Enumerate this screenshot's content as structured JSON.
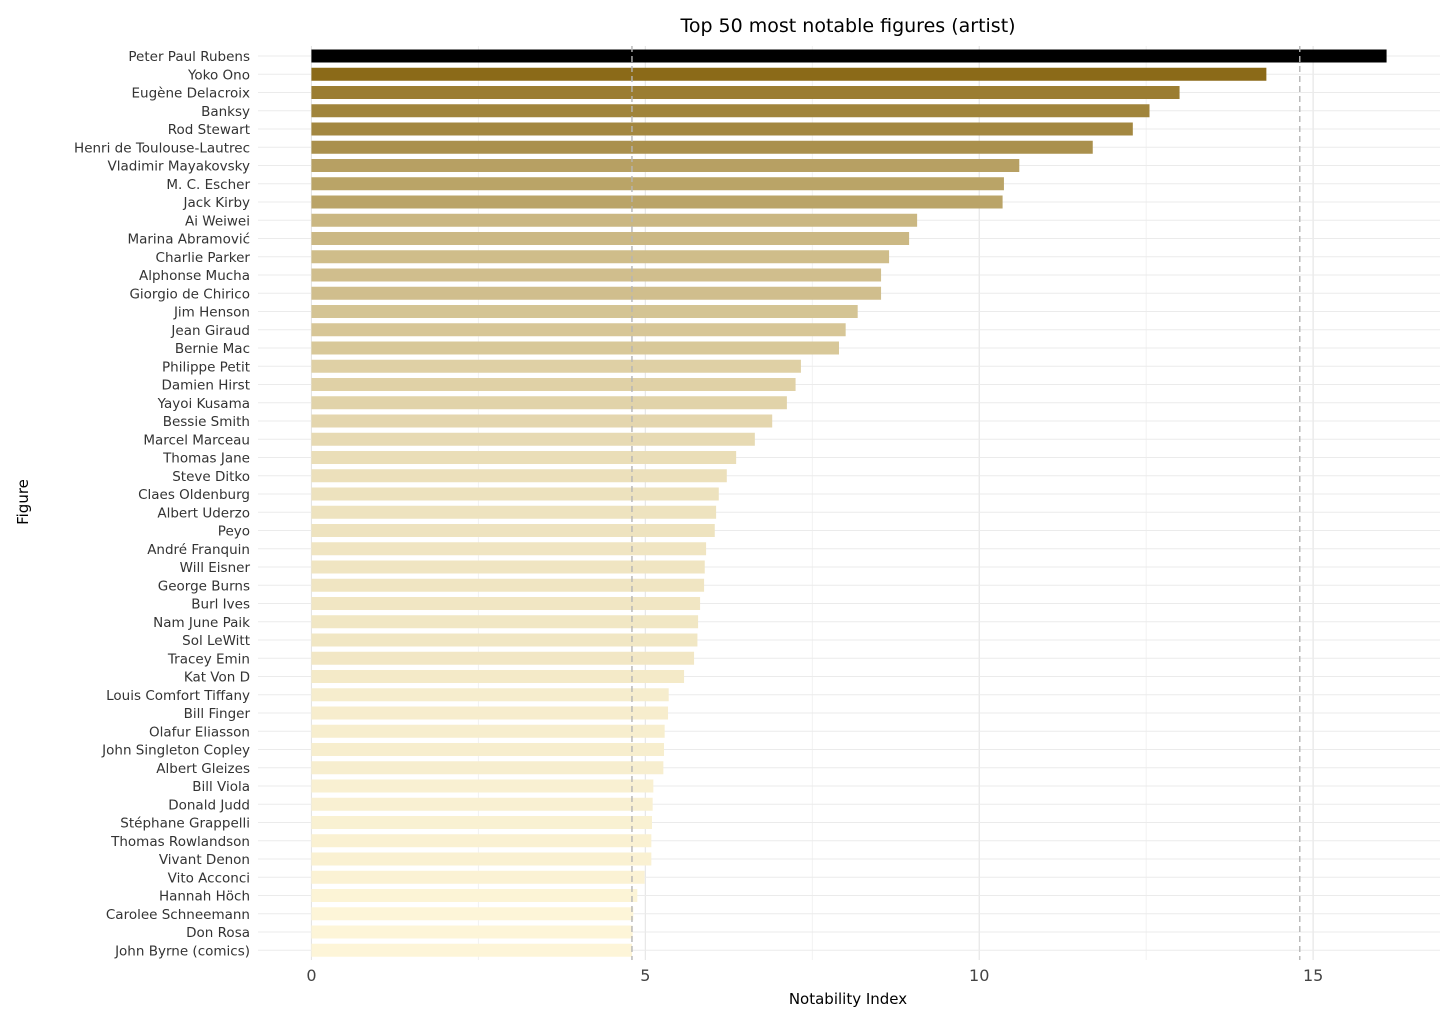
{
  "chart_data": {
    "type": "bar",
    "orientation": "horizontal",
    "title": "Top 50 most notable figures (artist)",
    "xlabel": "Notability Index",
    "ylabel": "Figure",
    "xlim": [
      -0.8,
      16.9
    ],
    "xticks": [
      0,
      5,
      10,
      15
    ],
    "grid": true,
    "legend": "none",
    "reference_lines": [
      4.8,
      14.8
    ],
    "color_low": "#fdf5d8",
    "color_high": "#8b6a18",
    "color_top": "#000000",
    "categories": [
      "Peter Paul Rubens",
      "Yoko Ono",
      "Eugène Delacroix",
      "Banksy",
      "Rod Stewart",
      "Henri de Toulouse-Lautrec",
      "Vladimir Mayakovsky",
      "M. C. Escher",
      "Jack Kirby",
      "Ai Weiwei",
      "Marina Abramović",
      "Charlie Parker",
      "Alphonse Mucha",
      "Giorgio de Chirico",
      "Jim Henson",
      "Jean Giraud",
      "Bernie Mac",
      "Philippe Petit",
      "Damien Hirst",
      "Yayoi Kusama",
      "Bessie Smith",
      "Marcel Marceau",
      "Thomas Jane",
      "Steve Ditko",
      "Claes Oldenburg",
      "Albert Uderzo",
      "Peyo",
      "André Franquin",
      "Will Eisner",
      "George Burns",
      "Burl Ives",
      "Nam June Paik",
      "Sol LeWitt",
      "Tracey Emin",
      "Kat Von D",
      "Louis Comfort Tiffany",
      "Bill Finger",
      "Olafur Eliasson",
      "John Singleton Copley",
      "Albert Gleizes",
      "Bill Viola",
      "Donald Judd",
      "Stéphane Grappelli",
      "Thomas Rowlandson",
      "Vivant Denon",
      "Vito Acconci",
      "Hannah Höch",
      "Carolee Schneemann",
      "Don Rosa",
      "John Byrne (comics)"
    ],
    "values": [
      16.1,
      14.3,
      13.0,
      12.55,
      12.3,
      11.7,
      10.6,
      10.37,
      10.35,
      9.07,
      8.95,
      8.65,
      8.53,
      8.53,
      8.18,
      8.0,
      7.9,
      7.33,
      7.25,
      7.12,
      6.9,
      6.64,
      6.36,
      6.22,
      6.1,
      6.06,
      6.04,
      5.91,
      5.89,
      5.88,
      5.82,
      5.79,
      5.78,
      5.73,
      5.58,
      5.35,
      5.34,
      5.29,
      5.28,
      5.27,
      5.12,
      5.11,
      5.1,
      5.09,
      5.09,
      4.99,
      4.88,
      4.82,
      4.81,
      4.8
    ]
  }
}
